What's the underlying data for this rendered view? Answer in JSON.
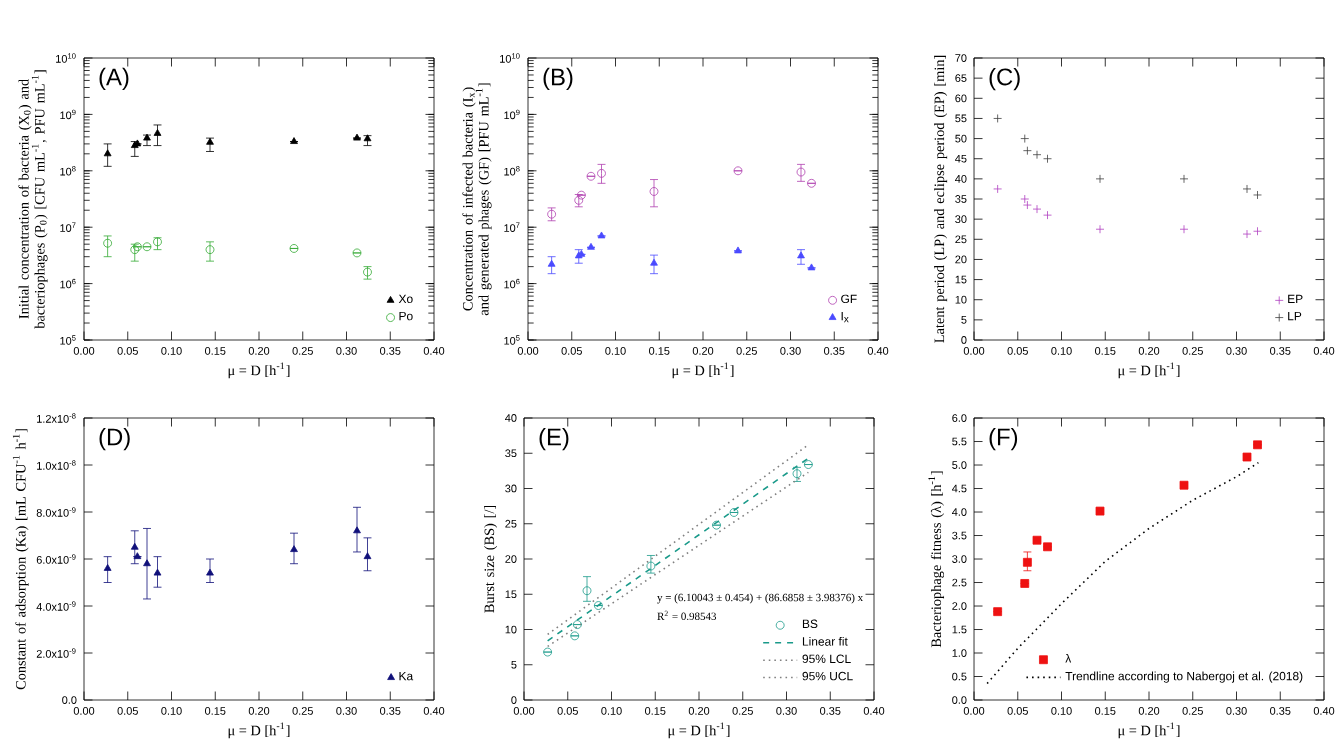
{
  "chart_data": [
    {
      "type": "scatter",
      "title": "(A)",
      "xlabel": "μ = D [h$^{-1}$]",
      "ylabel": "Initial concentration of bacteria (X$_{0}$) and bacteriophages (P$_{0}$) [CFU mL$^{-1}$, PFU mL$^{-1}$]",
      "log": "y",
      "legend": "bottom right",
      "xlim": [
        0,
        0.4
      ],
      "xticks": [
        {
          "value": 0,
          "label": "0.00"
        },
        {
          "value": 0.05,
          "label": "0.05"
        },
        {
          "value": 0.1,
          "label": "0.10"
        },
        {
          "value": 0.15,
          "label": "0.15"
        },
        {
          "value": 0.2,
          "label": "0.20"
        },
        {
          "value": 0.25,
          "label": "0.25"
        },
        {
          "value": 0.3,
          "label": "0.30"
        },
        {
          "value": 0.35,
          "label": "0.35"
        },
        {
          "value": 0.4,
          "label": "0.40"
        }
      ],
      "ylim": [
        100000.0,
        10000000000.0
      ],
      "yticks": [
        {
          "value": 100000.0,
          "label": "10$^{5}$"
        },
        {
          "value": 1000000.0,
          "label": "10$^{6}$"
        },
        {
          "value": 10000000.0,
          "label": "10$^{7}$"
        },
        {
          "value": 100000000.0,
          "label": "10$^{8}$"
        },
        {
          "value": 1000000000.0,
          "label": "10$^{9}$"
        },
        {
          "value": 10000000000.0,
          "label": "10$^{10}$"
        }
      ],
      "x": [
        0.027,
        0.058,
        0.061,
        0.072,
        0.084,
        0.144,
        0.24,
        0.312,
        0.324
      ],
      "series": [
        {
          "name": "Xo",
          "color": "#000000",
          "marker": "triangle",
          "values": [
            200000000.0,
            280000000.0,
            300000000.0,
            380000000.0,
            460000000.0,
            320000000.0,
            330000000.0,
            380000000.0,
            370000000.0
          ],
          "errors": [
            [
              120000000.0,
              300000000.0
            ],
            [
              180000000.0,
              330000000.0
            ],
            null,
            [
              280000000.0,
              430000000.0
            ],
            [
              280000000.0,
              650000000.0
            ],
            [
              220000000.0,
              380000000.0
            ],
            null,
            null,
            [
              280000000.0,
              420000000.0
            ]
          ]
        },
        {
          "name": "Po",
          "color": "#33aa33",
          "marker": "circle",
          "values": [
            5200000.0,
            4000000.0,
            4500000.0,
            4500000.0,
            5500000.0,
            4000000.0,
            4200000.0,
            3500000.0,
            1600000.0
          ],
          "errors": [
            [
              3000000.0,
              7000000.0
            ],
            [
              2500000.0,
              5000000.0
            ],
            null,
            null,
            [
              4000000.0,
              6500000.0
            ],
            [
              2500000.0,
              5500000.0
            ],
            null,
            null,
            [
              1200000.0,
              2000000.0
            ]
          ]
        }
      ]
    },
    {
      "type": "scatter",
      "title": "(B)",
      "xlabel": "μ = D [h$^{-1}$]",
      "ylabel": "Concentration of infected bacteria (I$_{x}$) and generated phages (GF) [PFU mL$^{-1}$]",
      "log": "y",
      "legend": "bottom right",
      "xlim": [
        0,
        0.4
      ],
      "xticks": [
        {
          "value": 0,
          "label": "0.00"
        },
        {
          "value": 0.05,
          "label": "0.05"
        },
        {
          "value": 0.1,
          "label": "0.10"
        },
        {
          "value": 0.15,
          "label": "0.15"
        },
        {
          "value": 0.2,
          "label": "0.20"
        },
        {
          "value": 0.25,
          "label": "0.25"
        },
        {
          "value": 0.3,
          "label": "0.30"
        },
        {
          "value": 0.35,
          "label": "0.35"
        },
        {
          "value": 0.4,
          "label": "0.40"
        }
      ],
      "ylim": [
        100000.0,
        10000000000.0
      ],
      "yticks": [
        {
          "value": 100000.0,
          "label": "10$^{5}$"
        },
        {
          "value": 1000000.0,
          "label": "10$^{6}$"
        },
        {
          "value": 10000000.0,
          "label": "10$^{7}$"
        },
        {
          "value": 100000000.0,
          "label": "10$^{8}$"
        },
        {
          "value": 1000000000.0,
          "label": "10$^{9}$"
        },
        {
          "value": 10000000000.0,
          "label": "10$^{10}$"
        }
      ],
      "x": [
        0.027,
        0.058,
        0.061,
        0.072,
        0.084,
        0.144,
        0.24,
        0.312,
        0.324
      ],
      "series": [
        {
          "name": "GF",
          "color": "#b040b0",
          "marker": "circle",
          "values": [
            17000000.0,
            30000000.0,
            37000000.0,
            80000000.0,
            90000000.0,
            43000000.0,
            100000000.0,
            95000000.0,
            60000000.0
          ],
          "errors": [
            [
              13000000.0,
              22000000.0
            ],
            [
              23000000.0,
              38000000.0
            ],
            null,
            null,
            [
              60000000.0,
              130000000.0
            ],
            [
              23000000.0,
              70000000.0
            ],
            null,
            [
              65000000.0,
              130000000.0
            ],
            null
          ]
        },
        {
          "name": "I$_{x}$",
          "color": "#4a4aff",
          "marker": "triangle",
          "values": [
            2200000.0,
            3100000.0,
            3300000.0,
            4400000.0,
            7000000.0,
            2300000.0,
            3800000.0,
            3100000.0,
            1900000.0
          ],
          "errors": [
            [
              1500000.0,
              3000000.0
            ],
            [
              2300000.0,
              4000000.0
            ],
            null,
            null,
            null,
            [
              1500000.0,
              3200000.0
            ],
            null,
            [
              2200000.0,
              4000000.0
            ],
            null
          ]
        }
      ]
    },
    {
      "type": "scatter",
      "title": "(C)",
      "xlabel": "μ = D [h$^{-1}$]",
      "ylabel": "Latent period (LP) and eclipse period (EP) [min]",
      "legend": "bottom right",
      "xlim": [
        0,
        0.4
      ],
      "xticks": [
        {
          "value": 0,
          "label": "0.00"
        },
        {
          "value": 0.05,
          "label": "0.05"
        },
        {
          "value": 0.1,
          "label": "0.10"
        },
        {
          "value": 0.15,
          "label": "0.15"
        },
        {
          "value": 0.2,
          "label": "0.20"
        },
        {
          "value": 0.25,
          "label": "0.25"
        },
        {
          "value": 0.3,
          "label": "0.30"
        },
        {
          "value": 0.35,
          "label": "0.35"
        },
        {
          "value": 0.4,
          "label": "0.40"
        }
      ],
      "ylim": [
        0,
        70
      ],
      "yticks": [
        0,
        5,
        10,
        15,
        20,
        25,
        30,
        35,
        40,
        45,
        50,
        55,
        60,
        65,
        70
      ],
      "x": [
        0.027,
        0.058,
        0.061,
        0.072,
        0.084,
        0.144,
        0.24,
        0.312,
        0.324
      ],
      "series": [
        {
          "name": "EP",
          "color": "#b040c0",
          "marker": "cross",
          "values": [
            37.5,
            35,
            33.5,
            32.5,
            31,
            27.5,
            27.5,
            26.3,
            27
          ]
        },
        {
          "name": "LP",
          "color": "#404040",
          "marker": "cross",
          "values": [
            55,
            50,
            47,
            46,
            45,
            40,
            40,
            37.5,
            36
          ]
        }
      ]
    },
    {
      "type": "scatter",
      "title": "(D)",
      "xlabel": "μ = D [h$^{-1}$]",
      "ylabel": "Constant of adsorption (Ka) [mL CFU$^{-1}$ h$^{-1}$]",
      "legend": "bottom right",
      "xlim": [
        0,
        0.4
      ],
      "xticks": [
        {
          "value": 0,
          "label": "0.00"
        },
        {
          "value": 0.05,
          "label": "0.05"
        },
        {
          "value": 0.1,
          "label": "0.10"
        },
        {
          "value": 0.15,
          "label": "0.15"
        },
        {
          "value": 0.2,
          "label": "0.20"
        },
        {
          "value": 0.25,
          "label": "0.25"
        },
        {
          "value": 0.3,
          "label": "0.30"
        },
        {
          "value": 0.35,
          "label": "0.35"
        },
        {
          "value": 0.4,
          "label": "0.40"
        }
      ],
      "ylim": [
        0,
        1.2e-08
      ],
      "yticks": [
        {
          "value": 0,
          "label": "0.0"
        },
        {
          "value": 2e-09,
          "label": "2.0x10$^{-9}$"
        },
        {
          "value": 4e-09,
          "label": "4.0x10$^{-9}$"
        },
        {
          "value": 6e-09,
          "label": "6.0x10$^{-9}$"
        },
        {
          "value": 8e-09,
          "label": "8.0x10$^{-9}$"
        },
        {
          "value": 1e-08,
          "label": "1.0x10$^{-8}$"
        },
        {
          "value": 1.2e-08,
          "label": "1.2x10$^{-8}$"
        }
      ],
      "x": [
        0.027,
        0.058,
        0.061,
        0.072,
        0.084,
        0.144,
        0.24,
        0.312,
        0.324
      ],
      "series": [
        {
          "name": "Ka",
          "color": "#10107a",
          "marker": "triangle",
          "values": [
            5.6e-09,
            6.5e-09,
            6.1e-09,
            5.8e-09,
            5.4e-09,
            5.4e-09,
            6.4e-09,
            7.2e-09,
            6.1e-09
          ],
          "errors": [
            [
              5e-09,
              6.1e-09
            ],
            [
              5.8e-09,
              7.2e-09
            ],
            null,
            [
              4.3e-09,
              7.3e-09
            ],
            [
              4.8e-09,
              6.1e-09
            ],
            [
              5e-09,
              6e-09
            ],
            [
              5.8e-09,
              7.1e-09
            ],
            [
              6.3e-09,
              8.2e-09
            ],
            [
              5.5e-09,
              6.9e-09
            ]
          ]
        }
      ]
    },
    {
      "type": "scatter",
      "title": "(E)",
      "xlabel": "μ = D [h$^{-1}$]",
      "ylabel": "Burst size (BS) [/]",
      "legend": "bottom right",
      "annotations": [
        "y = (6.10043 ± 0.454) + (86.6858 ± 3.98376) x",
        "R$^{2}$ = 0.98543"
      ],
      "xlim": [
        0,
        0.4
      ],
      "xticks": [
        {
          "value": 0,
          "label": "0.00"
        },
        {
          "value": 0.05,
          "label": "0.05"
        },
        {
          "value": 0.1,
          "label": "0.10"
        },
        {
          "value": 0.15,
          "label": "0.15"
        },
        {
          "value": 0.2,
          "label": "0.20"
        },
        {
          "value": 0.25,
          "label": "0.25"
        },
        {
          "value": 0.3,
          "label": "0.30"
        },
        {
          "value": 0.35,
          "label": "0.35"
        },
        {
          "value": 0.4,
          "label": "0.40"
        }
      ],
      "ylim": [
        0,
        40
      ],
      "yticks": [
        0,
        5,
        10,
        15,
        20,
        25,
        30,
        35,
        40
      ],
      "series": [
        {
          "name": "BS",
          "color": "#1a9a8a",
          "marker": "circle",
          "x": [
            0.027,
            0.058,
            0.061,
            0.072,
            0.085,
            0.145,
            0.22,
            0.24,
            0.312,
            0.325
          ],
          "values": [
            6.8,
            9.1,
            10.7,
            15.5,
            13.4,
            19,
            24.8,
            26.6,
            32.1,
            33.4
          ],
          "errors": [
            null,
            null,
            null,
            [
              14,
              17.5
            ],
            null,
            [
              18,
              20.5
            ],
            null,
            null,
            [
              31,
              33
            ],
            null
          ]
        },
        {
          "name": "Linear fit",
          "type": "line",
          "line_style": "dashed",
          "color": "#1a9a8a",
          "x": [
            0.027,
            0.325
          ],
          "values": [
            8.4,
            34.3
          ]
        },
        {
          "name": "95% LCL",
          "type": "line",
          "line_style": "dotted",
          "color": "#808080",
          "x": [
            0.027,
            0.325
          ],
          "values": [
            7.6,
            32.3
          ]
        },
        {
          "name": "95% UCL",
          "type": "line",
          "line_style": "dotted",
          "color": "#808080",
          "x": [
            0.027,
            0.325
          ],
          "values": [
            9.3,
            36.2
          ]
        }
      ]
    },
    {
      "type": "scatter",
      "title": "(F)",
      "xlabel": "μ = D [h$^{-1}$]",
      "ylabel": "Bacteriophage fitness (λ) [h$^{-1}$]",
      "legend": "bottom right",
      "xlim": [
        0,
        0.4
      ],
      "xticks": [
        {
          "value": 0,
          "label": "0.00"
        },
        {
          "value": 0.05,
          "label": "0.05"
        },
        {
          "value": 0.1,
          "label": "0.10"
        },
        {
          "value": 0.15,
          "label": "0.15"
        },
        {
          "value": 0.2,
          "label": "0.20"
        },
        {
          "value": 0.25,
          "label": "0.25"
        },
        {
          "value": 0.3,
          "label": "0.30"
        },
        {
          "value": 0.35,
          "label": "0.35"
        },
        {
          "value": 0.4,
          "label": "0.40"
        }
      ],
      "ylim": [
        0,
        6
      ],
      "yticks": [
        {
          "value": 0,
          "label": "0.0"
        },
        {
          "value": 0.5,
          "label": "0.5"
        },
        {
          "value": 1,
          "label": "1.0"
        },
        {
          "value": 1.5,
          "label": "1.5"
        },
        {
          "value": 2,
          "label": "2.0"
        },
        {
          "value": 2.5,
          "label": "2.5"
        },
        {
          "value": 3,
          "label": "3.0"
        },
        {
          "value": 3.5,
          "label": "3.5"
        },
        {
          "value": 4,
          "label": "4.0"
        },
        {
          "value": 4.5,
          "label": "4.5"
        },
        {
          "value": 5,
          "label": "5.0"
        },
        {
          "value": 5.5,
          "label": "5.5"
        },
        {
          "value": 6,
          "label": "6.0"
        }
      ],
      "series": [
        {
          "name": "λ",
          "color": "#ee1111",
          "marker": "square",
          "x": [
            0.027,
            0.058,
            0.061,
            0.072,
            0.084,
            0.144,
            0.24,
            0.312,
            0.324
          ],
          "values": [
            1.88,
            2.48,
            2.93,
            3.4,
            3.26,
            4.02,
            4.57,
            5.17,
            5.43
          ],
          "errors": [
            null,
            null,
            [
              2.75,
              3.15
            ],
            null,
            null,
            null,
            null,
            null,
            null
          ]
        },
        {
          "name": "Trendline according to Nabergoj et al. (2018)",
          "type": "line",
          "line_style": "dotted",
          "color": "#000000",
          "x": [
            0.015,
            0.05,
            0.1,
            0.15,
            0.2,
            0.25,
            0.3,
            0.325
          ],
          "values": [
            0.35,
            1.1,
            2.05,
            2.95,
            3.65,
            4.25,
            4.75,
            5.05
          ]
        }
      ]
    }
  ]
}
